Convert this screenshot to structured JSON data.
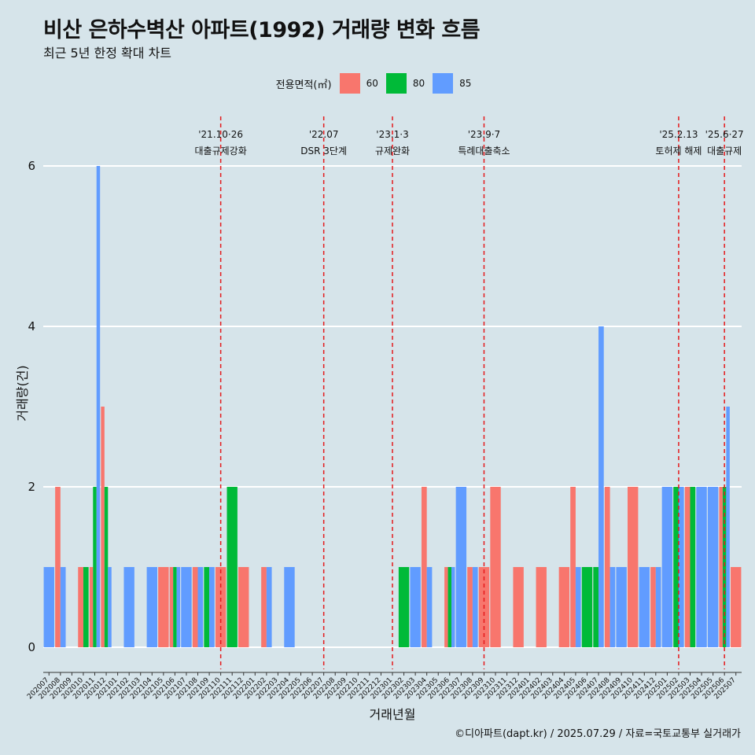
{
  "chart_data": {
    "type": "bar",
    "title": "비산 은하수벽산 아파트(1992) 거래량 변화 흐름",
    "subtitle": "최근 5년 한정 확대 차트",
    "xlabel": "거래년월",
    "ylabel": "거래량(건)",
    "ylim": [
      0,
      6
    ],
    "yticks": [
      0,
      2,
      4,
      6
    ],
    "grid": true,
    "legend": {
      "title": "전용면적(㎡)",
      "position": "top"
    },
    "colors": {
      "60": "#f8766d",
      "80": "#00ba38",
      "85": "#619cff"
    },
    "categories": [
      "202007",
      "202008",
      "202009",
      "202010",
      "202011",
      "202012",
      "202101",
      "202102",
      "202103",
      "202104",
      "202105",
      "202106",
      "202107",
      "202108",
      "202109",
      "202110",
      "202111",
      "202112",
      "202201",
      "202202",
      "202203",
      "202204",
      "202205",
      "202206",
      "202207",
      "202208",
      "202209",
      "202210",
      "202211",
      "202212",
      "202301",
      "202302",
      "202303",
      "202304",
      "202305",
      "202306",
      "202307",
      "202308",
      "202309",
      "202310",
      "202311",
      "202312",
      "202401",
      "202402",
      "202403",
      "202404",
      "202405",
      "202406",
      "202407",
      "202408",
      "202409",
      "202410",
      "202411",
      "202412",
      "202501",
      "202502",
      "202503",
      "202504",
      "202505",
      "202506",
      "202507"
    ],
    "series": [
      {
        "name": "60",
        "values": [
          0,
          2,
          0,
          1,
          1,
          3,
          0,
          0,
          0,
          0,
          1,
          1,
          0,
          1,
          0,
          1,
          0,
          1,
          0,
          1,
          0,
          0,
          0,
          0,
          0,
          0,
          0,
          0,
          0,
          0,
          0,
          0,
          0,
          2,
          0,
          1,
          0,
          1,
          1,
          2,
          0,
          1,
          0,
          1,
          0,
          1,
          2,
          0,
          0,
          2,
          0,
          2,
          0,
          1,
          0,
          0,
          2,
          0,
          0,
          2,
          1
        ]
      },
      {
        "name": "80",
        "values": [
          0,
          0,
          0,
          1,
          2,
          2,
          0,
          0,
          0,
          0,
          0,
          1,
          0,
          0,
          1,
          0,
          2,
          0,
          0,
          0,
          0,
          0,
          0,
          0,
          0,
          0,
          0,
          0,
          0,
          0,
          0,
          1,
          0,
          0,
          0,
          1,
          0,
          0,
          0,
          0,
          0,
          0,
          0,
          0,
          0,
          0,
          0,
          1,
          1,
          0,
          0,
          0,
          0,
          0,
          0,
          2,
          2,
          0,
          0,
          2,
          0
        ]
      },
      {
        "name": "85",
        "values": [
          1,
          1,
          0,
          0,
          6,
          1,
          0,
          1,
          0,
          1,
          0,
          1,
          1,
          1,
          1,
          0,
          0,
          0,
          0,
          1,
          0,
          1,
          0,
          0,
          0,
          0,
          0,
          0,
          0,
          0,
          0,
          0,
          1,
          1,
          0,
          1,
          2,
          1,
          0,
          0,
          0,
          0,
          0,
          0,
          0,
          0,
          1,
          0,
          4,
          1,
          1,
          0,
          1,
          1,
          2,
          2,
          0,
          2,
          2,
          3,
          0
        ]
      }
    ],
    "annotations": [
      {
        "date_line1": "'21.10·26",
        "date_line2": "대출규제강화",
        "at": "202110"
      },
      {
        "date_line1": "'22.07",
        "date_line2": "DSR 3단계",
        "at": "202207"
      },
      {
        "date_line1": "'23.1·3",
        "date_line2": "규제완화",
        "at": "202301"
      },
      {
        "date_line1": "'23.9·7",
        "date_line2": "특례대출축소",
        "at": "202309"
      },
      {
        "date_line1": "'25.2.13",
        "date_line2": "토허제 해제",
        "at": "202502"
      },
      {
        "date_line1": "'25.6·27",
        "date_line2": "대출규제",
        "at": "202506"
      }
    ]
  },
  "caption": "©디아파트(dapt.kr) / 2025.07.29 / 자료=국토교통부 실거래가"
}
